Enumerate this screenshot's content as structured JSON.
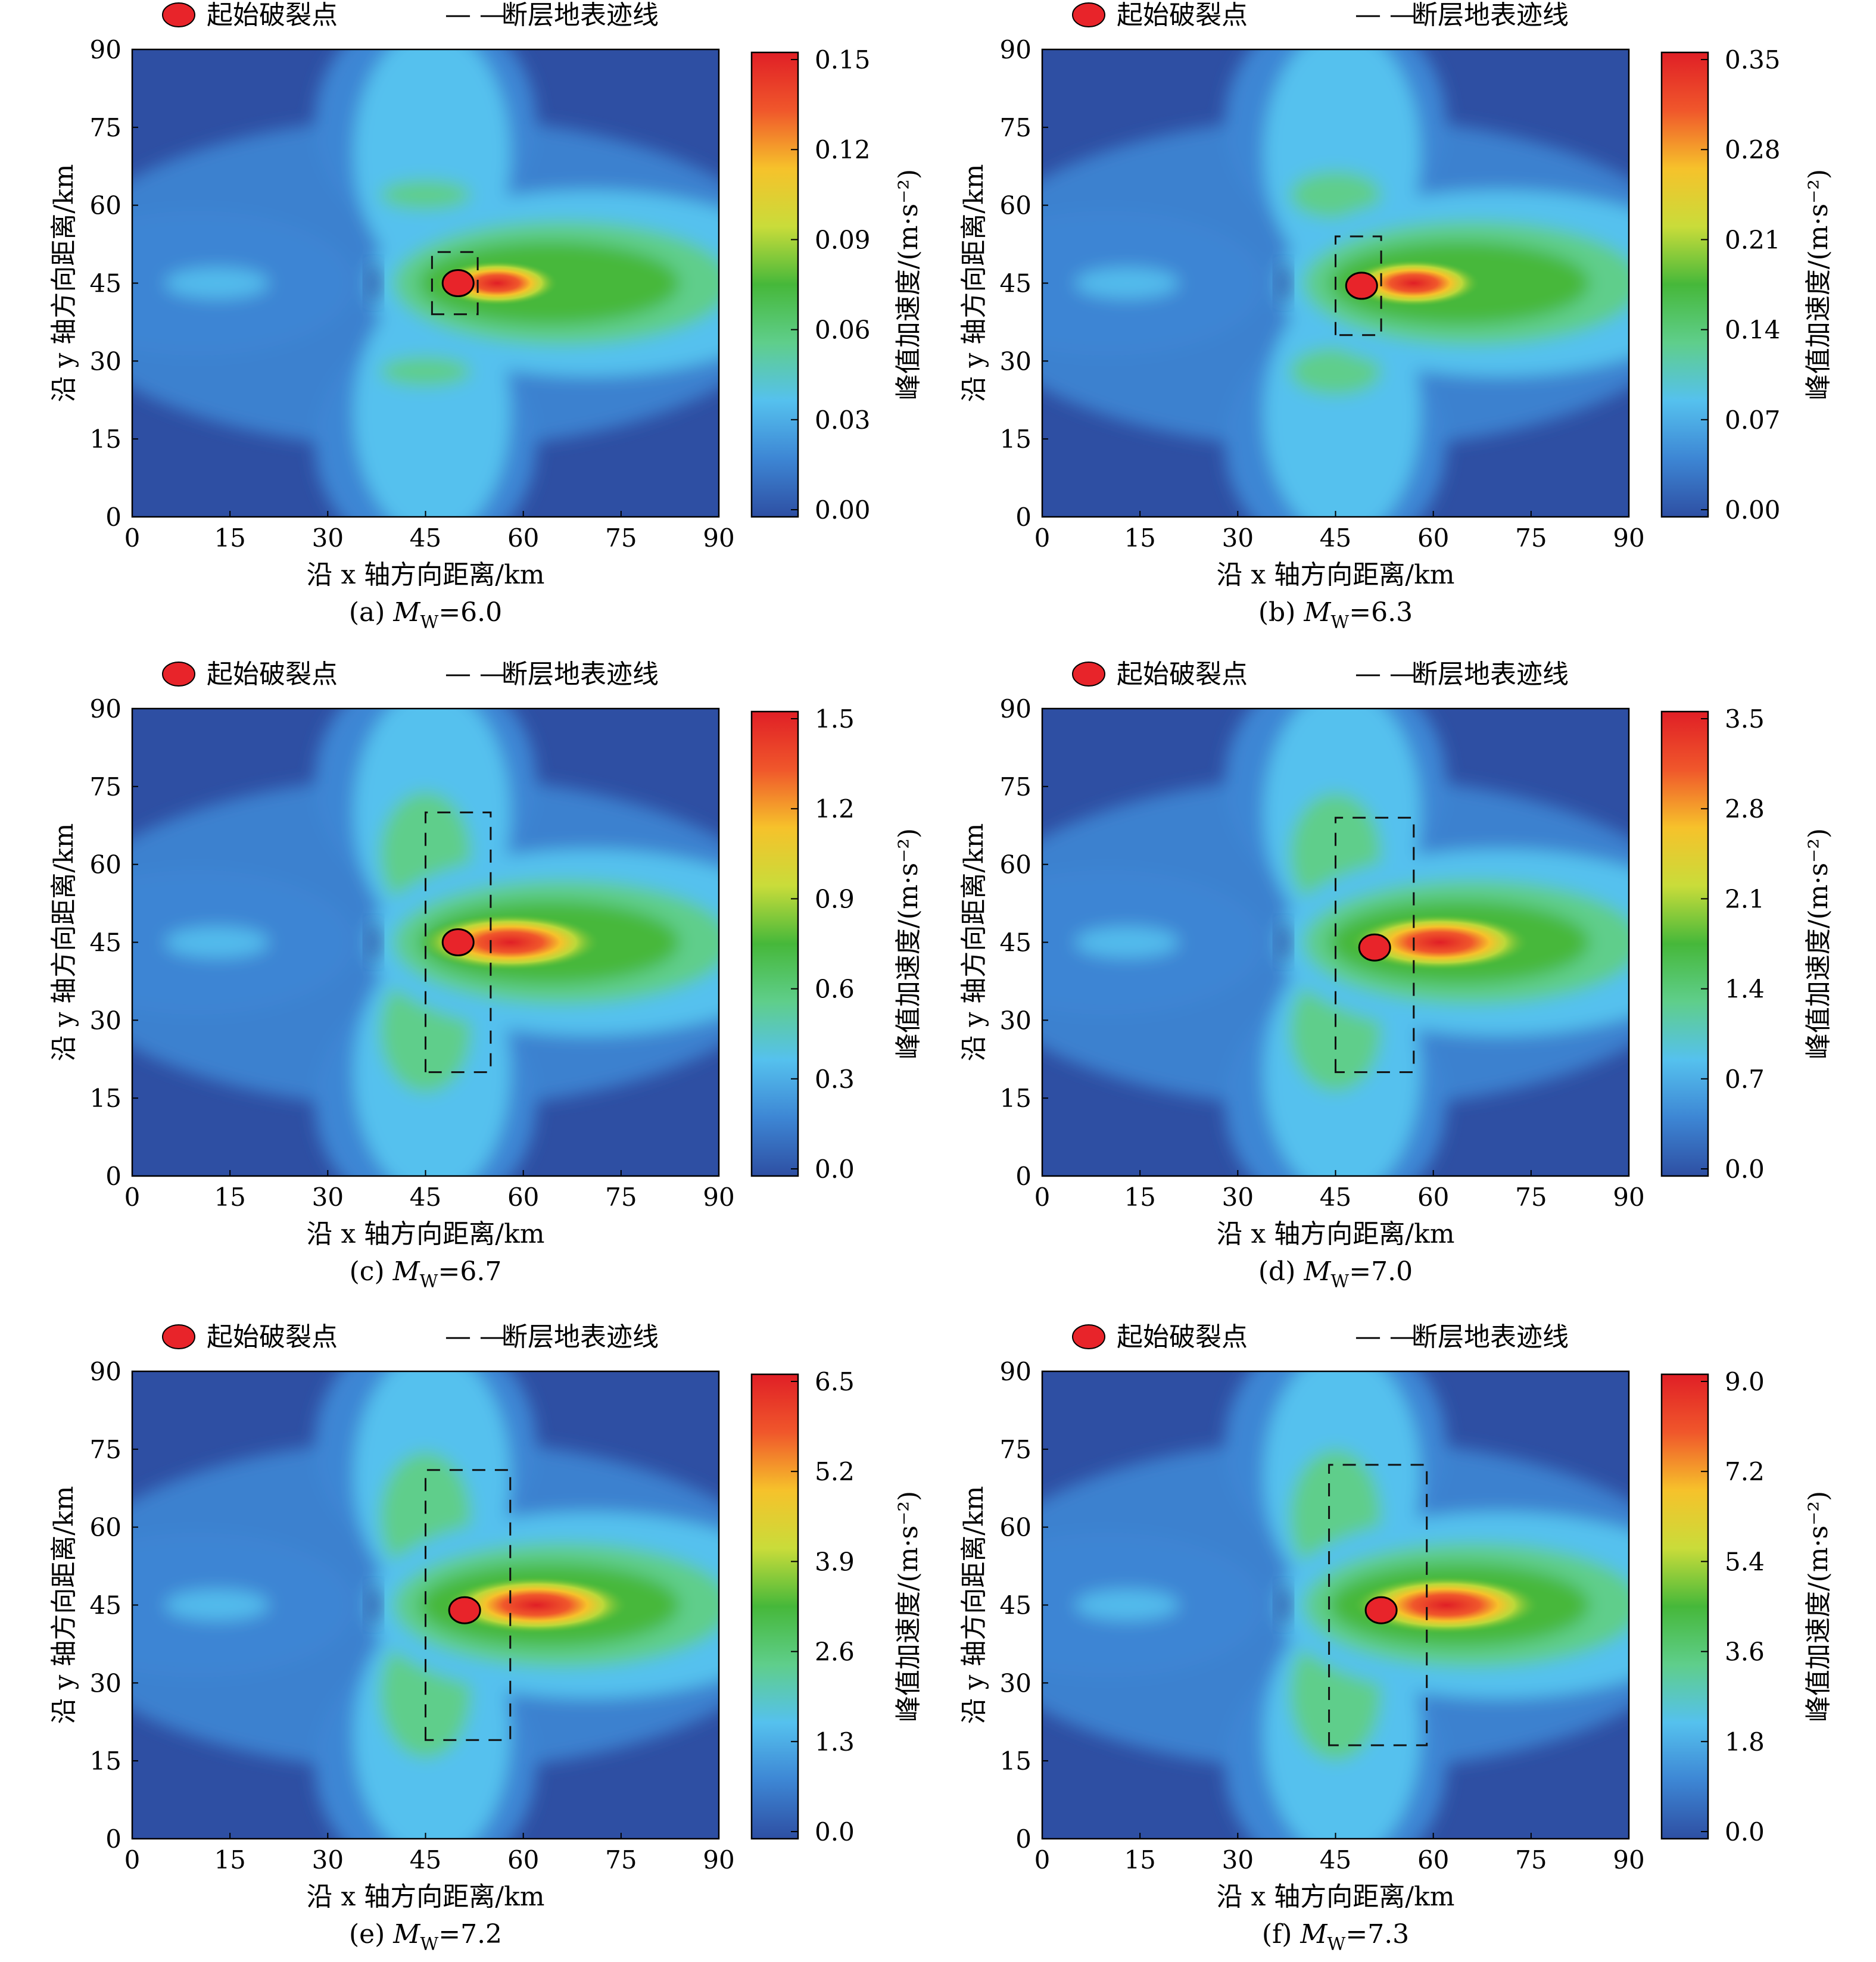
{
  "legend": {
    "rupture_label": "起始破裂点",
    "rupture_color": "#e8242a",
    "fault_symbol": "— —",
    "fault_label": "断层地表迹线"
  },
  "axes": {
    "xlabel": "沿 x 轴方向距离/km",
    "ylabel": "沿 y 轴方向距离/km",
    "colorbar_label": "峰值加速度/(m·s⁻²)",
    "xticks": [
      0,
      15,
      30,
      45,
      60,
      75,
      90
    ],
    "yticks": [
      0,
      15,
      30,
      45,
      60,
      75,
      90
    ],
    "xlim": [
      0,
      90
    ],
    "ylim": [
      0,
      90
    ]
  },
  "colormap": [
    "#2e4fa3",
    "#3d86d4",
    "#55c1ee",
    "#5fce8b",
    "#46b83a",
    "#c9dc3a",
    "#f6c22b",
    "#f0572b",
    "#e01f26"
  ],
  "chart_data": [
    {
      "type": "heatmap",
      "title": "(a) Mw=6.0",
      "magnitude": "6.0",
      "caption_prefix": "(a) ",
      "caption_suffix": "=6.0",
      "colorbar_ticks": [
        "0.00",
        "0.03",
        "0.06",
        "0.09",
        "0.12",
        "0.15"
      ],
      "colorbar_range": [
        0,
        0.15
      ],
      "rupture_start": [
        50,
        45
      ],
      "fault_trace": [
        [
          46,
          39
        ],
        [
          46,
          51
        ],
        [
          53,
          51
        ],
        [
          53,
          39
        ]
      ],
      "peak_location": [
        56,
        45
      ],
      "peak_value": 0.15
    },
    {
      "type": "heatmap",
      "title": "(b) Mw=6.3",
      "magnitude": "6.3",
      "caption_prefix": "(b) ",
      "caption_suffix": "=6.3",
      "colorbar_ticks": [
        "0.00",
        "0.07",
        "0.14",
        "0.21",
        "0.28",
        "0.35"
      ],
      "colorbar_range": [
        0,
        0.35
      ],
      "rupture_start": [
        49,
        44.5
      ],
      "fault_trace": [
        [
          45,
          35
        ],
        [
          45,
          54
        ],
        [
          52,
          54
        ],
        [
          52,
          35
        ]
      ],
      "peak_location": [
        57,
        45
      ],
      "peak_value": 0.35
    },
    {
      "type": "heatmap",
      "title": "(c) Mw=6.7",
      "magnitude": "6.7",
      "caption_prefix": "(c) ",
      "caption_suffix": "=6.7",
      "colorbar_ticks": [
        "0.0",
        "0.3",
        "0.6",
        "0.9",
        "1.2",
        "1.5"
      ],
      "colorbar_range": [
        0,
        1.5
      ],
      "rupture_start": [
        50,
        45
      ],
      "fault_trace": [
        [
          45,
          20
        ],
        [
          45,
          70
        ],
        [
          55,
          70
        ],
        [
          55,
          20
        ]
      ],
      "peak_location": [
        58,
        45
      ],
      "peak_value": 1.5
    },
    {
      "type": "heatmap",
      "title": "(d) Mw=7.0",
      "magnitude": "7.0",
      "caption_prefix": "(d) ",
      "caption_suffix": "=7.0",
      "colorbar_ticks": [
        "0.0",
        "0.7",
        "1.4",
        "2.1",
        "2.8",
        "3.5"
      ],
      "colorbar_range": [
        0,
        3.5
      ],
      "rupture_start": [
        51,
        44
      ],
      "fault_trace": [
        [
          45,
          20
        ],
        [
          45,
          69
        ],
        [
          57,
          69
        ],
        [
          57,
          20
        ]
      ],
      "peak_location": [
        61,
        45
      ],
      "peak_value": 3.5
    },
    {
      "type": "heatmap",
      "title": "(e) Mw=7.2",
      "magnitude": "7.2",
      "caption_prefix": "(e) ",
      "caption_suffix": "=7.2",
      "colorbar_ticks": [
        "0.0",
        "1.3",
        "2.6",
        "3.9",
        "5.2",
        "6.5"
      ],
      "colorbar_range": [
        0,
        6.5
      ],
      "rupture_start": [
        51,
        44
      ],
      "fault_trace": [
        [
          45,
          19
        ],
        [
          45,
          71
        ],
        [
          58,
          71
        ],
        [
          58,
          19
        ]
      ],
      "peak_location": [
        62,
        45
      ],
      "peak_value": 6.5
    },
    {
      "type": "heatmap",
      "title": "(f) Mw=7.3",
      "magnitude": "7.3",
      "caption_prefix": "(f) ",
      "caption_suffix": "=7.3",
      "colorbar_ticks": [
        "0.0",
        "1.8",
        "3.6",
        "5.4",
        "7.2",
        "9.0"
      ],
      "colorbar_range": [
        0,
        9.0
      ],
      "rupture_start": [
        52,
        44
      ],
      "fault_trace": [
        [
          44,
          18
        ],
        [
          44,
          72
        ],
        [
          59,
          72
        ],
        [
          59,
          18
        ]
      ],
      "peak_location": [
        62,
        45
      ],
      "peak_value": 9.0
    }
  ]
}
